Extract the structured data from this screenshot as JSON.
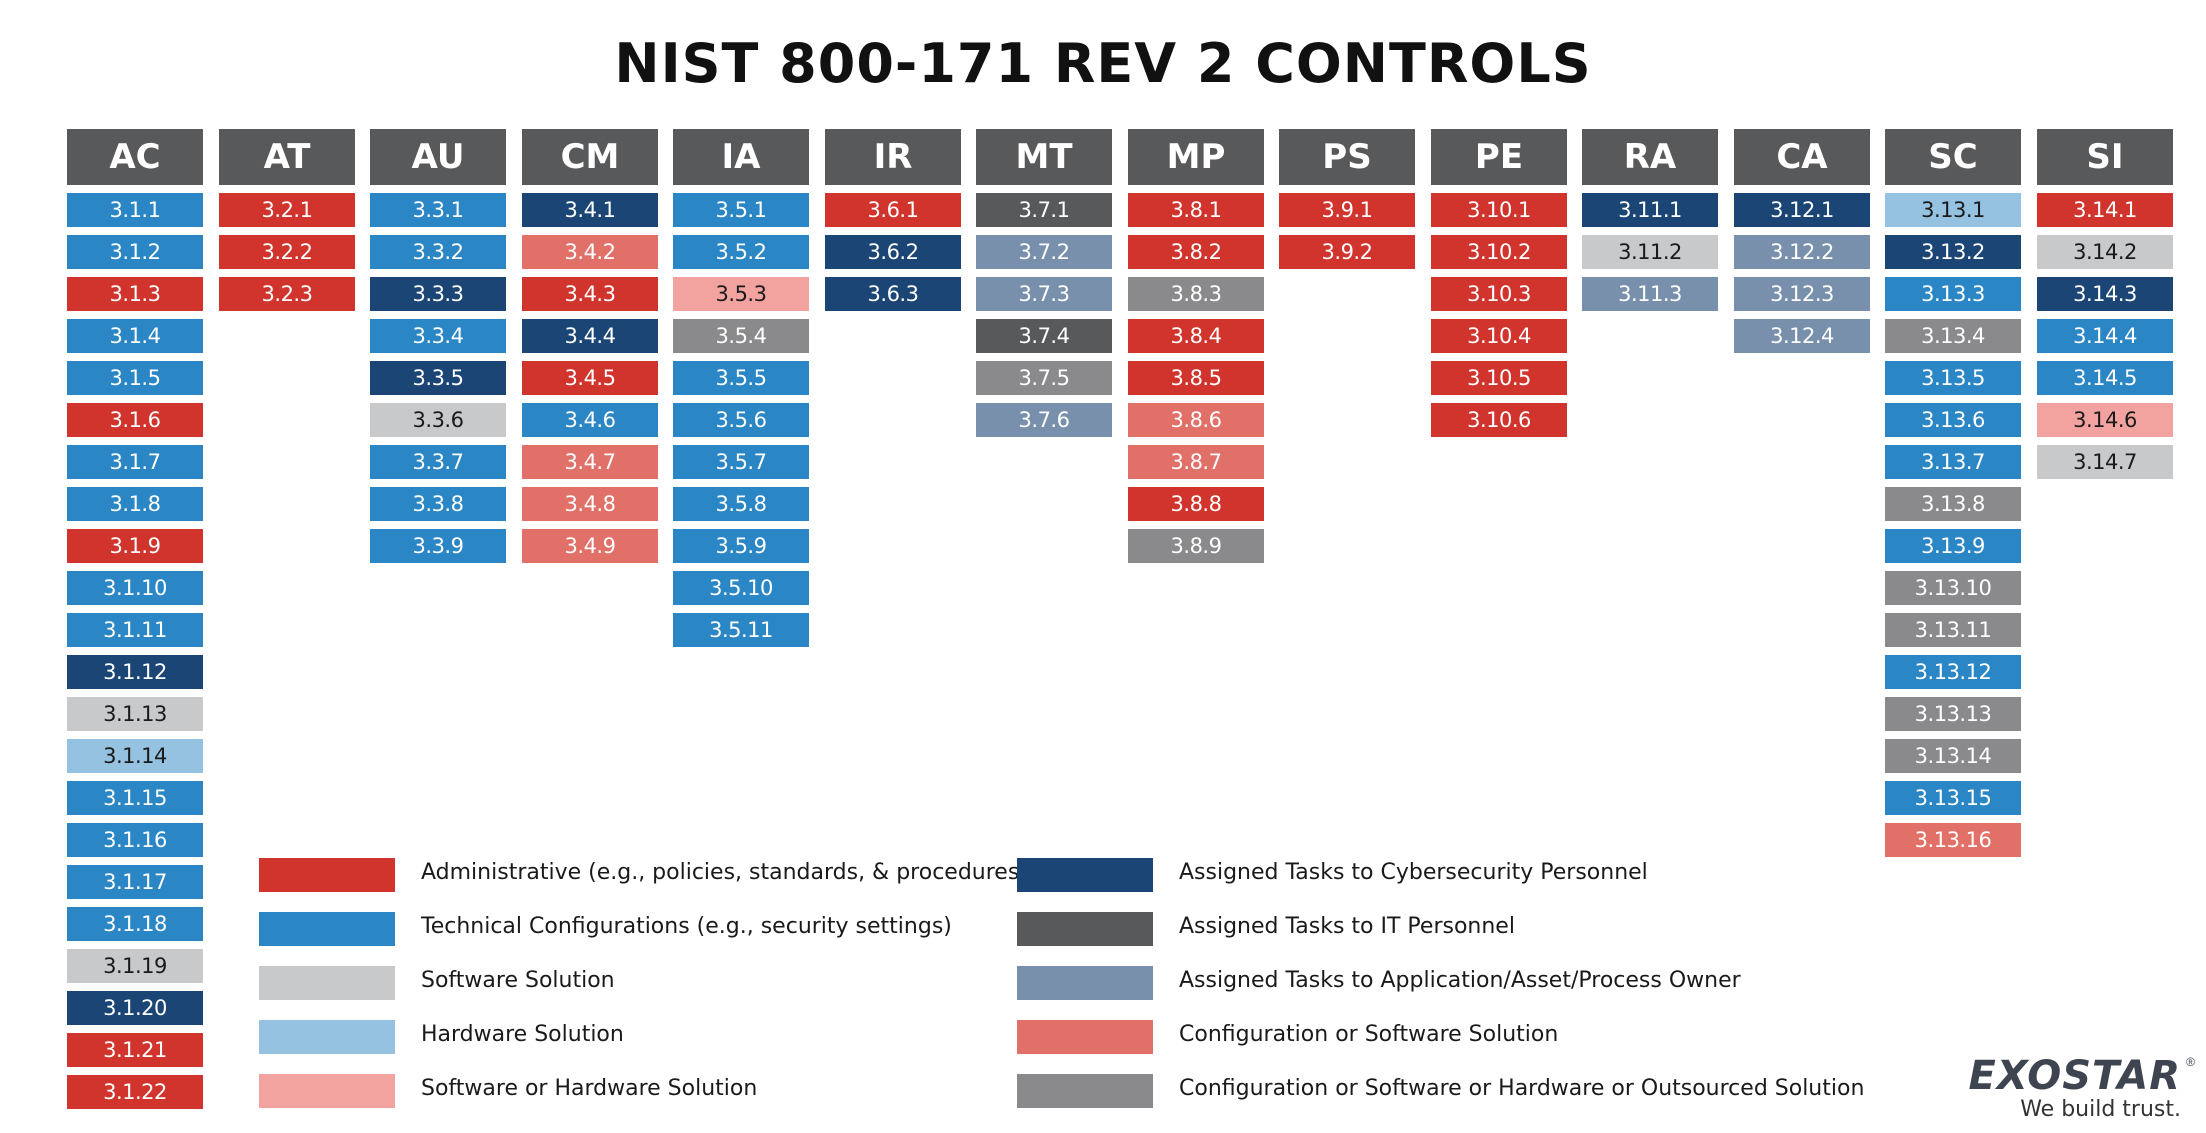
{
  "title": "NIST 800-171 REV 2 CONTROLS",
  "colors": {
    "admin": "#d0342c",
    "tech": "#2a86c4",
    "software": "#c8c9cb",
    "hardware": "#94c2e0",
    "sw_or_hw": "#f2a3a0",
    "cyber": "#1b4575",
    "it": "#58595b",
    "owner": "#7990ad",
    "config_sw": "#e07068",
    "config_sw_hw_out": "#8a8a8c"
  },
  "families": [
    {
      "code": "AC",
      "controls": [
        {
          "id": "3.1.1",
          "c": "tech"
        },
        {
          "id": "3.1.2",
          "c": "tech"
        },
        {
          "id": "3.1.3",
          "c": "admin"
        },
        {
          "id": "3.1.4",
          "c": "tech"
        },
        {
          "id": "3.1.5",
          "c": "tech"
        },
        {
          "id": "3.1.6",
          "c": "admin"
        },
        {
          "id": "3.1.7",
          "c": "tech"
        },
        {
          "id": "3.1.8",
          "c": "tech"
        },
        {
          "id": "3.1.9",
          "c": "admin"
        },
        {
          "id": "3.1.10",
          "c": "tech"
        },
        {
          "id": "3.1.11",
          "c": "tech"
        },
        {
          "id": "3.1.12",
          "c": "cyber"
        },
        {
          "id": "3.1.13",
          "c": "software"
        },
        {
          "id": "3.1.14",
          "c": "hardware"
        },
        {
          "id": "3.1.15",
          "c": "tech"
        },
        {
          "id": "3.1.16",
          "c": "tech"
        },
        {
          "id": "3.1.17",
          "c": "tech"
        },
        {
          "id": "3.1.18",
          "c": "tech"
        },
        {
          "id": "3.1.19",
          "c": "software"
        },
        {
          "id": "3.1.20",
          "c": "cyber"
        },
        {
          "id": "3.1.21",
          "c": "admin"
        },
        {
          "id": "3.1.22",
          "c": "admin"
        }
      ]
    },
    {
      "code": "AT",
      "controls": [
        {
          "id": "3.2.1",
          "c": "admin"
        },
        {
          "id": "3.2.2",
          "c": "admin"
        },
        {
          "id": "3.2.3",
          "c": "admin"
        }
      ]
    },
    {
      "code": "AU",
      "controls": [
        {
          "id": "3.3.1",
          "c": "tech"
        },
        {
          "id": "3.3.2",
          "c": "tech"
        },
        {
          "id": "3.3.3",
          "c": "cyber"
        },
        {
          "id": "3.3.4",
          "c": "tech"
        },
        {
          "id": "3.3.5",
          "c": "cyber"
        },
        {
          "id": "3.3.6",
          "c": "software"
        },
        {
          "id": "3.3.7",
          "c": "tech"
        },
        {
          "id": "3.3.8",
          "c": "tech"
        },
        {
          "id": "3.3.9",
          "c": "tech"
        }
      ]
    },
    {
      "code": "CM",
      "controls": [
        {
          "id": "3.4.1",
          "c": "cyber"
        },
        {
          "id": "3.4.2",
          "c": "config_sw"
        },
        {
          "id": "3.4.3",
          "c": "admin"
        },
        {
          "id": "3.4.4",
          "c": "cyber"
        },
        {
          "id": "3.4.5",
          "c": "admin"
        },
        {
          "id": "3.4.6",
          "c": "tech"
        },
        {
          "id": "3.4.7",
          "c": "config_sw"
        },
        {
          "id": "3.4.8",
          "c": "config_sw"
        },
        {
          "id": "3.4.9",
          "c": "config_sw"
        }
      ]
    },
    {
      "code": "IA",
      "controls": [
        {
          "id": "3.5.1",
          "c": "tech"
        },
        {
          "id": "3.5.2",
          "c": "tech"
        },
        {
          "id": "3.5.3",
          "c": "sw_or_hw"
        },
        {
          "id": "3.5.4",
          "c": "config_sw_hw_out"
        },
        {
          "id": "3.5.5",
          "c": "tech"
        },
        {
          "id": "3.5.6",
          "c": "tech"
        },
        {
          "id": "3.5.7",
          "c": "tech"
        },
        {
          "id": "3.5.8",
          "c": "tech"
        },
        {
          "id": "3.5.9",
          "c": "tech"
        },
        {
          "id": "3.5.10",
          "c": "tech"
        },
        {
          "id": "3.5.11",
          "c": "tech"
        }
      ]
    },
    {
      "code": "IR",
      "controls": [
        {
          "id": "3.6.1",
          "c": "admin"
        },
        {
          "id": "3.6.2",
          "c": "cyber"
        },
        {
          "id": "3.6.3",
          "c": "cyber"
        }
      ]
    },
    {
      "code": "MT",
      "controls": [
        {
          "id": "3.7.1",
          "c": "it"
        },
        {
          "id": "3.7.2",
          "c": "owner"
        },
        {
          "id": "3.7.3",
          "c": "owner"
        },
        {
          "id": "3.7.4",
          "c": "it"
        },
        {
          "id": "3.7.5",
          "c": "config_sw_hw_out"
        },
        {
          "id": "3.7.6",
          "c": "owner"
        }
      ]
    },
    {
      "code": "MP",
      "controls": [
        {
          "id": "3.8.1",
          "c": "admin"
        },
        {
          "id": "3.8.2",
          "c": "admin"
        },
        {
          "id": "3.8.3",
          "c": "config_sw_hw_out"
        },
        {
          "id": "3.8.4",
          "c": "admin"
        },
        {
          "id": "3.8.5",
          "c": "admin"
        },
        {
          "id": "3.8.6",
          "c": "config_sw"
        },
        {
          "id": "3.8.7",
          "c": "config_sw"
        },
        {
          "id": "3.8.8",
          "c": "admin"
        },
        {
          "id": "3.8.9",
          "c": "config_sw_hw_out"
        }
      ]
    },
    {
      "code": "PS",
      "controls": [
        {
          "id": "3.9.1",
          "c": "admin"
        },
        {
          "id": "3.9.2",
          "c": "admin"
        }
      ]
    },
    {
      "code": "PE",
      "controls": [
        {
          "id": "3.10.1",
          "c": "admin"
        },
        {
          "id": "3.10.2",
          "c": "admin"
        },
        {
          "id": "3.10.3",
          "c": "admin"
        },
        {
          "id": "3.10.4",
          "c": "admin"
        },
        {
          "id": "3.10.5",
          "c": "admin"
        },
        {
          "id": "3.10.6",
          "c": "admin"
        }
      ]
    },
    {
      "code": "RA",
      "controls": [
        {
          "id": "3.11.1",
          "c": "cyber"
        },
        {
          "id": "3.11.2",
          "c": "software"
        },
        {
          "id": "3.11.3",
          "c": "owner"
        }
      ]
    },
    {
      "code": "CA",
      "controls": [
        {
          "id": "3.12.1",
          "c": "cyber"
        },
        {
          "id": "3.12.2",
          "c": "owner"
        },
        {
          "id": "3.12.3",
          "c": "owner"
        },
        {
          "id": "3.12.4",
          "c": "owner"
        }
      ]
    },
    {
      "code": "SC",
      "controls": [
        {
          "id": "3.13.1",
          "c": "hardware"
        },
        {
          "id": "3.13.2",
          "c": "cyber"
        },
        {
          "id": "3.13.3",
          "c": "tech"
        },
        {
          "id": "3.13.4",
          "c": "config_sw_hw_out"
        },
        {
          "id": "3.13.5",
          "c": "tech"
        },
        {
          "id": "3.13.6",
          "c": "tech"
        },
        {
          "id": "3.13.7",
          "c": "tech"
        },
        {
          "id": "3.13.8",
          "c": "config_sw_hw_out"
        },
        {
          "id": "3.13.9",
          "c": "tech"
        },
        {
          "id": "3.13.10",
          "c": "config_sw_hw_out"
        },
        {
          "id": "3.13.11",
          "c": "config_sw_hw_out"
        },
        {
          "id": "3.13.12",
          "c": "tech"
        },
        {
          "id": "3.13.13",
          "c": "config_sw_hw_out"
        },
        {
          "id": "3.13.14",
          "c": "config_sw_hw_out"
        },
        {
          "id": "3.13.15",
          "c": "tech"
        },
        {
          "id": "3.13.16",
          "c": "config_sw"
        }
      ]
    },
    {
      "code": "SI",
      "controls": [
        {
          "id": "3.14.1",
          "c": "admin"
        },
        {
          "id": "3.14.2",
          "c": "software"
        },
        {
          "id": "3.14.3",
          "c": "cyber"
        },
        {
          "id": "3.14.4",
          "c": "tech"
        },
        {
          "id": "3.14.5",
          "c": "tech"
        },
        {
          "id": "3.14.6",
          "c": "sw_or_hw"
        },
        {
          "id": "3.14.7",
          "c": "software"
        }
      ]
    }
  ],
  "legend": [
    {
      "key": "admin",
      "label": "Administrative (e.g., policies, standards, & procedures)"
    },
    {
      "key": "tech",
      "label": "Technical Configurations (e.g., security settings)"
    },
    {
      "key": "software",
      "label": "Software Solution"
    },
    {
      "key": "hardware",
      "label": "Hardware Solution"
    },
    {
      "key": "sw_or_hw",
      "label": "Software or Hardware Solution"
    },
    {
      "key": "cyber",
      "label": "Assigned Tasks to Cybersecurity Personnel"
    },
    {
      "key": "it",
      "label": "Assigned Tasks to IT Personnel"
    },
    {
      "key": "owner",
      "label": "Assigned Tasks to Application/Asset/Process Owner"
    },
    {
      "key": "config_sw",
      "label": "Configuration or Software Solution"
    },
    {
      "key": "config_sw_hw_out",
      "label": "Configuration or Software or Hardware or Outsourced Solution"
    }
  ],
  "logo": {
    "word": "EXOSTAR",
    "reg": "®",
    "tagline": "We build trust."
  }
}
